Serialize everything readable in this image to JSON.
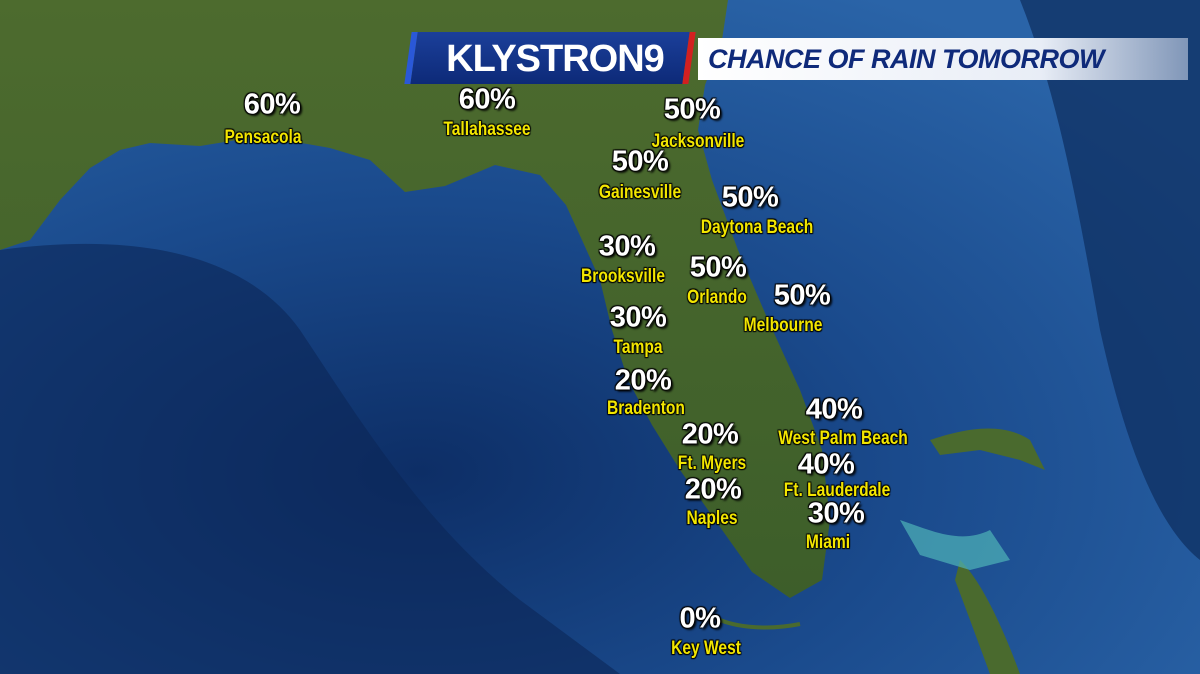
{
  "header": {
    "logo": "KLYSTRON9",
    "title": "CHANCE OF RAIN TOMORROW"
  },
  "cities": [
    {
      "name": "Pensacola",
      "label": "60%"
    },
    {
      "name": "Tallahassee",
      "label": "60%"
    },
    {
      "name": "Jacksonville",
      "label": "50%"
    },
    {
      "name": "Gainesville",
      "label": "50%"
    },
    {
      "name": "Daytona Beach",
      "label": "50%"
    },
    {
      "name": "Brooksville",
      "label": "30%"
    },
    {
      "name": "Orlando",
      "label": "50%"
    },
    {
      "name": "Melbourne",
      "label": "50%"
    },
    {
      "name": "Tampa",
      "label": "30%"
    },
    {
      "name": "Bradenton",
      "label": "20%"
    },
    {
      "name": "West Palm Beach",
      "label": "40%"
    },
    {
      "name": "Ft. Myers",
      "label": "20%"
    },
    {
      "name": "Ft. Lauderdale",
      "label": "40%"
    },
    {
      "name": "Naples",
      "label": "20%"
    },
    {
      "name": "Miami",
      "label": "30%"
    },
    {
      "name": "Key West",
      "label": "0%"
    }
  ]
}
